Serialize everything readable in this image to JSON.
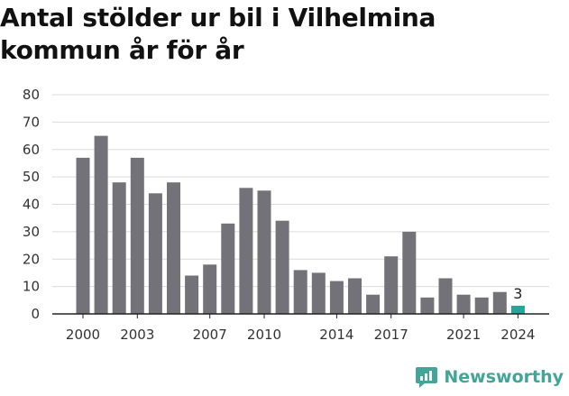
{
  "title": "Antal stölder ur bil i Vilhelmina kommun år för år",
  "brand": {
    "name": "Newsworthy",
    "logo_icon": "newsworthy-logo-icon"
  },
  "colors": {
    "bar": "#737278",
    "highlight": "#21a898",
    "grid": "#dcdcdc",
    "axis": "#222222",
    "brand": "#41a697"
  },
  "chart_data": {
    "type": "bar",
    "title": "Antal stölder ur bil i Vilhelmina kommun år för år",
    "xlabel": "",
    "ylabel": "",
    "categories": [
      2000,
      2001,
      2002,
      2003,
      2004,
      2005,
      2006,
      2007,
      2008,
      2009,
      2010,
      2011,
      2012,
      2013,
      2014,
      2015,
      2016,
      2017,
      2018,
      2019,
      2020,
      2021,
      2022,
      2023,
      2024
    ],
    "values": [
      57,
      65,
      48,
      57,
      44,
      48,
      14,
      18,
      33,
      46,
      45,
      34,
      16,
      15,
      12,
      13,
      7,
      21,
      30,
      6,
      13,
      7,
      6,
      8,
      3
    ],
    "highlight_index": 24,
    "highlight_label": "3",
    "ylim": [
      0,
      80
    ],
    "yticks": [
      0,
      10,
      20,
      30,
      40,
      50,
      60,
      70,
      80
    ],
    "xtick_labels": [
      "2000",
      "2003",
      "2007",
      "2010",
      "2014",
      "2017",
      "2021",
      "2024"
    ],
    "grid": true,
    "legend": "none"
  }
}
